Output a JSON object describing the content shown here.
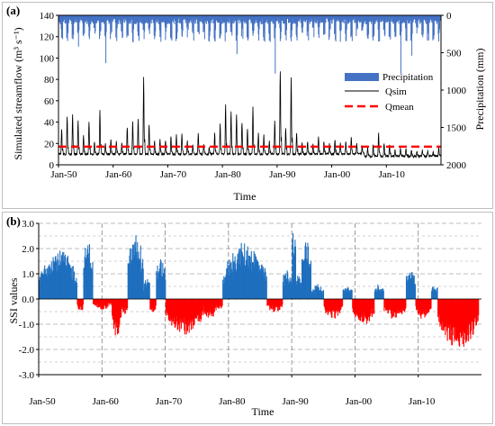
{
  "colors": {
    "precipitation": "#4472c4",
    "qsim": "#000000",
    "qmean": "#ff0000",
    "ssi_positive": "#1f6fbf",
    "ssi_negative": "#ff0000",
    "grid": "#a6a6a6"
  },
  "chart_data": [
    {
      "panel_label": "(a)",
      "type": "line",
      "xlabel": "Time",
      "ylabel": "Simulated streamflow (m³ s⁻¹)",
      "ylabel_right": "Precipitation (mm)",
      "ylim": [
        0,
        140
      ],
      "ylim_right": [
        0,
        2000
      ],
      "right_axis_inverted": true,
      "x_range": [
        1950,
        2020
      ],
      "x_tick_labels": [
        "Jan-50",
        "Jan-60",
        "Jan-70",
        "Jan-80",
        "Jan-90",
        "Jan-00",
        "Jan-10"
      ],
      "y_tick_labels": [
        "0",
        "20",
        "40",
        "60",
        "80",
        "100",
        "120",
        "140"
      ],
      "y_right_tick_labels": [
        "0",
        "500",
        "1000",
        "1500",
        "2000"
      ],
      "legend": [
        "Precipitation",
        "Qsim",
        "Qmean"
      ],
      "legend_position": "right",
      "grid": false,
      "series": [
        {
          "name": "Qsim",
          "kind": "line",
          "annual_peaks": [
            {
              "year": 1950,
              "value": 34
            },
            {
              "year": 1951,
              "value": 46
            },
            {
              "year": 1952,
              "value": 48
            },
            {
              "year": 1953,
              "value": 41
            },
            {
              "year": 1954,
              "value": 27
            },
            {
              "year": 1955,
              "value": 40
            },
            {
              "year": 1956,
              "value": 22
            },
            {
              "year": 1957,
              "value": 51
            },
            {
              "year": 1958,
              "value": 20
            },
            {
              "year": 1959,
              "value": 24
            },
            {
              "year": 1960,
              "value": 22
            },
            {
              "year": 1961,
              "value": 20
            },
            {
              "year": 1962,
              "value": 35
            },
            {
              "year": 1963,
              "value": 40
            },
            {
              "year": 1964,
              "value": 44
            },
            {
              "year": 1965,
              "value": 82
            },
            {
              "year": 1966,
              "value": 38
            },
            {
              "year": 1967,
              "value": 22
            },
            {
              "year": 1968,
              "value": 24
            },
            {
              "year": 1969,
              "value": 22
            },
            {
              "year": 1970,
              "value": 26
            },
            {
              "year": 1971,
              "value": 28
            },
            {
              "year": 1972,
              "value": 30
            },
            {
              "year": 1973,
              "value": 22
            },
            {
              "year": 1974,
              "value": 18
            },
            {
              "year": 1975,
              "value": 30
            },
            {
              "year": 1976,
              "value": 20
            },
            {
              "year": 1977,
              "value": 17
            },
            {
              "year": 1978,
              "value": 30
            },
            {
              "year": 1979,
              "value": 38
            },
            {
              "year": 1980,
              "value": 56
            },
            {
              "year": 1981,
              "value": 50
            },
            {
              "year": 1982,
              "value": 48
            },
            {
              "year": 1983,
              "value": 40
            },
            {
              "year": 1984,
              "value": 34
            },
            {
              "year": 1985,
              "value": 54
            },
            {
              "year": 1986,
              "value": 30
            },
            {
              "year": 1987,
              "value": 28
            },
            {
              "year": 1988,
              "value": 22
            },
            {
              "year": 1989,
              "value": 42
            },
            {
              "year": 1990,
              "value": 87
            },
            {
              "year": 1991,
              "value": 34
            },
            {
              "year": 1992,
              "value": 82
            },
            {
              "year": 1993,
              "value": 30
            },
            {
              "year": 1994,
              "value": 20
            },
            {
              "year": 1995,
              "value": 22
            },
            {
              "year": 1996,
              "value": 20
            },
            {
              "year": 1997,
              "value": 26
            },
            {
              "year": 1998,
              "value": 22
            },
            {
              "year": 1999,
              "value": 20
            },
            {
              "year": 2000,
              "value": 24
            },
            {
              "year": 2001,
              "value": 20
            },
            {
              "year": 2002,
              "value": 22
            },
            {
              "year": 2003,
              "value": 26
            },
            {
              "year": 2004,
              "value": 20
            },
            {
              "year": 2005,
              "value": 18
            },
            {
              "year": 2006,
              "value": 16
            },
            {
              "year": 2007,
              "value": 18
            },
            {
              "year": 2008,
              "value": 30
            },
            {
              "year": 2009,
              "value": 20
            },
            {
              "year": 2010,
              "value": 18
            },
            {
              "year": 2011,
              "value": 14
            },
            {
              "year": 2012,
              "value": 16
            },
            {
              "year": 2013,
              "value": 15
            },
            {
              "year": 2014,
              "value": 14
            },
            {
              "year": 2015,
              "value": 13
            },
            {
              "year": 2016,
              "value": 14
            },
            {
              "year": 2017,
              "value": 13
            },
            {
              "year": 2018,
              "value": 12
            }
          ],
          "annual_baseflow": 10
        },
        {
          "name": "Qmean",
          "kind": "dashed-line",
          "value": 17
        },
        {
          "name": "Precipitation",
          "kind": "bars-from-top",
          "typical_annual_peak_mm": 300,
          "notable_peaks": [
            {
              "year": 1953,
              "value": 420
            },
            {
              "year": 1958,
              "value": 640
            },
            {
              "year": 1963,
              "value": 360
            },
            {
              "year": 1982,
              "value": 520
            },
            {
              "year": 1989,
              "value": 780
            },
            {
              "year": 2012,
              "value": 780
            },
            {
              "year": 2014,
              "value": 540
            }
          ]
        }
      ]
    },
    {
      "panel_label": "(b)",
      "type": "bar",
      "xlabel": "Time",
      "ylabel": "SSI values",
      "ylim": [
        -3.0,
        3.0
      ],
      "x_range": [
        1950,
        2020
      ],
      "x_tick_labels": [
        "Jan-50",
        "Jan-60",
        "Jan-70",
        "Jan-80",
        "Jan-90",
        "Jan-00",
        "Jan-10"
      ],
      "y_tick_labels": [
        "3.0",
        "2.0",
        "1.0",
        "0.0",
        "-1.0",
        "-2.0",
        "-3.0"
      ],
      "grid": true,
      "series": [
        {
          "name": "SSI",
          "kind": "bars-signed",
          "segments": [
            {
              "start": 1950.0,
              "end": 1956.0,
              "peak": 2.0,
              "noise": 0.5
            },
            {
              "start": 1956.0,
              "end": 1957.0,
              "peak": -0.5,
              "noise": 0.3
            },
            {
              "start": 1957.0,
              "end": 1958.5,
              "peak": 2.3,
              "noise": 0.6
            },
            {
              "start": 1958.5,
              "end": 1961.5,
              "peak": -0.4,
              "noise": 0.2
            },
            {
              "start": 1961.5,
              "end": 1963.0,
              "peak": -1.5,
              "noise": 0.4
            },
            {
              "start": 1963.0,
              "end": 1964.0,
              "peak": -0.6,
              "noise": 0.3
            },
            {
              "start": 1964.0,
              "end": 1966.5,
              "peak": 2.6,
              "noise": 0.7
            },
            {
              "start": 1966.5,
              "end": 1967.5,
              "peak": 0.8,
              "noise": 0.4
            },
            {
              "start": 1967.5,
              "end": 1968.5,
              "peak": -0.6,
              "noise": 0.3
            },
            {
              "start": 1968.5,
              "end": 1970.0,
              "peak": 1.6,
              "noise": 0.5
            },
            {
              "start": 1970.0,
              "end": 1976.0,
              "peak": -1.4,
              "noise": 0.5
            },
            {
              "start": 1976.0,
              "end": 1978.0,
              "peak": -0.8,
              "noise": 0.4
            },
            {
              "start": 1978.0,
              "end": 1979.0,
              "peak": -0.4,
              "noise": 0.2
            },
            {
              "start": 1979.0,
              "end": 1986.0,
              "peak": 2.2,
              "noise": 0.6
            },
            {
              "start": 1986.0,
              "end": 1988.5,
              "peak": -0.5,
              "noise": 0.3
            },
            {
              "start": 1988.5,
              "end": 1990.0,
              "peak": 1.2,
              "noise": 0.5
            },
            {
              "start": 1990.0,
              "end": 1990.6,
              "peak": 3.0,
              "noise": 0.4
            },
            {
              "start": 1990.6,
              "end": 1991.5,
              "peak": 1.0,
              "noise": 0.4
            },
            {
              "start": 1991.5,
              "end": 1993.0,
              "peak": 2.4,
              "noise": 0.5
            },
            {
              "start": 1993.0,
              "end": 1995.0,
              "peak": 0.6,
              "noise": 0.3
            },
            {
              "start": 1995.0,
              "end": 1998.0,
              "peak": -0.8,
              "noise": 0.3
            },
            {
              "start": 1998.0,
              "end": 1999.5,
              "peak": 0.5,
              "noise": 0.3
            },
            {
              "start": 1999.5,
              "end": 2003.0,
              "peak": -1.0,
              "noise": 0.4
            },
            {
              "start": 2003.0,
              "end": 2004.5,
              "peak": 0.6,
              "noise": 0.3
            },
            {
              "start": 2004.5,
              "end": 2008.0,
              "peak": -0.8,
              "noise": 0.3
            },
            {
              "start": 2008.0,
              "end": 2009.5,
              "peak": 1.3,
              "noise": 0.5
            },
            {
              "start": 2009.5,
              "end": 2012.0,
              "peak": -0.8,
              "noise": 0.3
            },
            {
              "start": 2012.0,
              "end": 2013.0,
              "peak": 0.6,
              "noise": 0.3
            },
            {
              "start": 2013.0,
              "end": 2019.5,
              "peak": -2.0,
              "noise": 0.4
            }
          ]
        }
      ]
    }
  ]
}
